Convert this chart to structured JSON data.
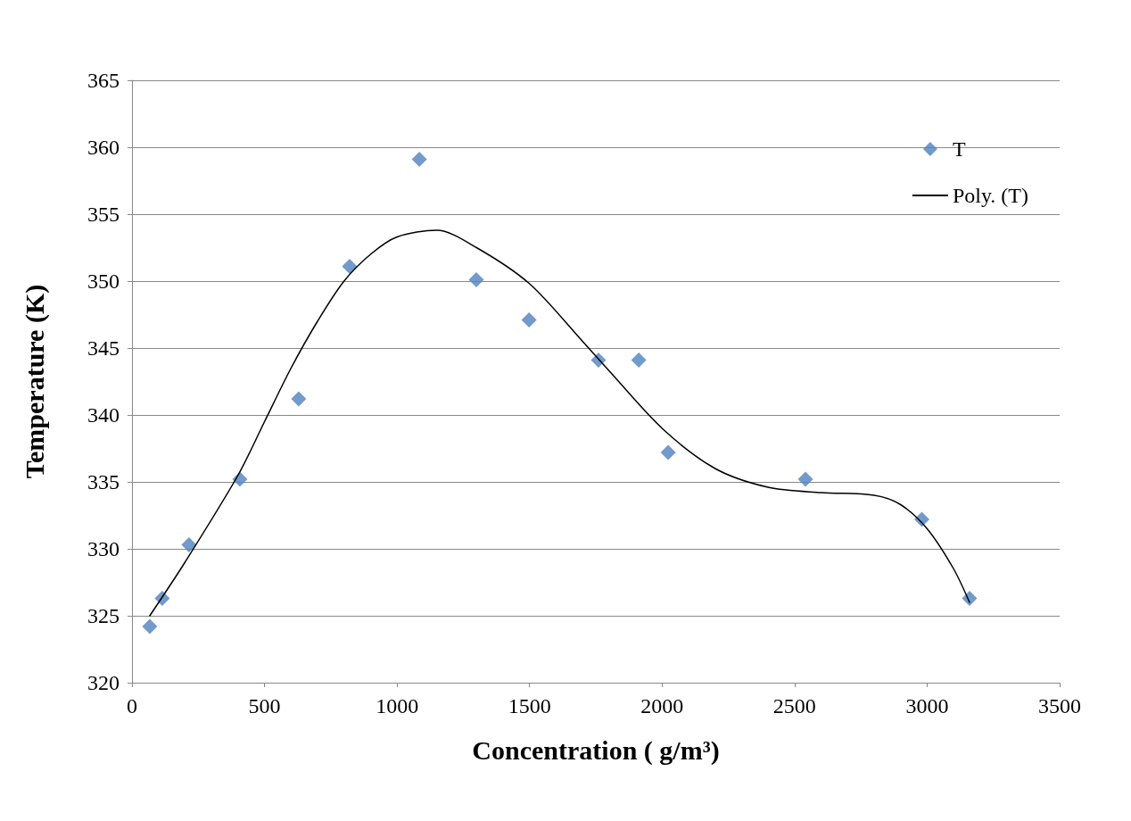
{
  "chart_data": {
    "type": "scatter",
    "xlabel": "Concentration ( g/m³)",
    "ylabel": "Temperature (K)",
    "xlim": [
      0,
      3500
    ],
    "xticks": [
      0,
      500,
      1000,
      1500,
      2000,
      2500,
      3000,
      3500
    ],
    "ylim": [
      320,
      365
    ],
    "yticks": [
      320,
      325,
      330,
      335,
      340,
      345,
      350,
      355,
      360,
      365
    ],
    "grid": "y",
    "legend": "top right",
    "marker": "diamond",
    "series": [
      {
        "name": "T",
        "color": "#4f81bd",
        "x": [
          67,
          114,
          215,
          407,
          629,
          821,
          1084,
          1299,
          1498,
          1760,
          1912,
          2023,
          2541,
          2980,
          3160
        ],
        "values": [
          324.2,
          326.3,
          330.3,
          335.2,
          341.2,
          351.1,
          359.1,
          350.1,
          347.1,
          344.1,
          344.1,
          337.2,
          335.2,
          332.2,
          326.3
        ]
      },
      {
        "name": "Poly. (T)",
        "type": "line",
        "marker": "none",
        "line_style": "solid",
        "color": "#000000",
        "x": [
          67,
          200,
          400,
          500,
          600,
          700,
          800,
          900,
          1000,
          1150,
          1300,
          1500,
          1700,
          1800,
          2000,
          2200,
          2400,
          2600,
          2800,
          2900,
          3000,
          3100,
          3160
        ],
        "values": [
          325.0,
          329.0,
          335.5,
          339.5,
          343.5,
          347.0,
          350.0,
          352.0,
          353.3,
          353.8,
          352.5,
          349.8,
          345.5,
          343.3,
          339.0,
          336.0,
          334.6,
          334.2,
          334.0,
          333.3,
          331.5,
          328.5,
          326.0
        ]
      }
    ]
  }
}
